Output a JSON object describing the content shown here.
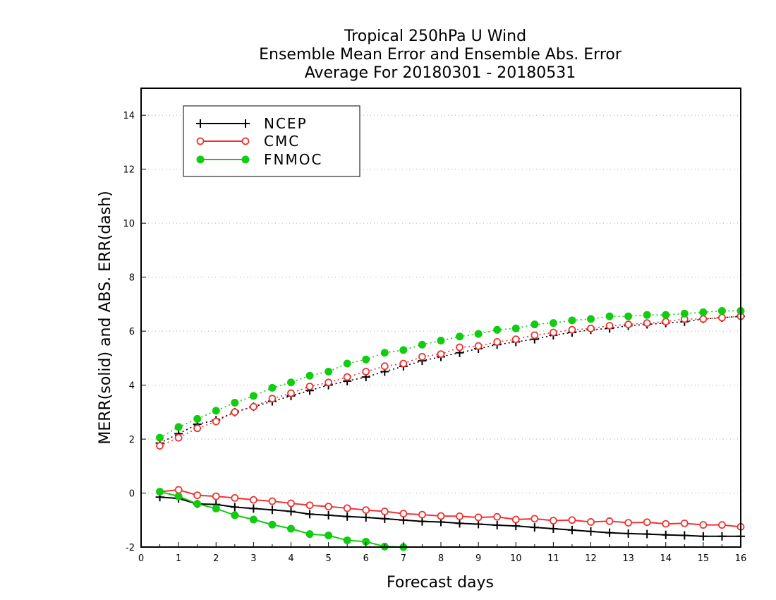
{
  "chart_data": {
    "type": "line",
    "title": [
      "Tropical 250hPa U Wind",
      "Ensemble Mean Error and Ensemble Abs. Error",
      "Average For 20180301 - 20180531"
    ],
    "xlabel": "Forecast days",
    "ylabel": "MERR(solid) and ABS. ERR(dash)",
    "xlim": [
      0,
      16
    ],
    "ylim": [
      -2,
      15
    ],
    "xticks": [
      "0",
      "1",
      "2",
      "3",
      "4",
      "5",
      "6",
      "7",
      "8",
      "9",
      "10",
      "11",
      "12",
      "13",
      "14",
      "15",
      "16"
    ],
    "yticks": [
      "-2",
      "0",
      "2",
      "4",
      "6",
      "8",
      "10",
      "12",
      "14"
    ],
    "grid": "horizontal dotted",
    "legend_position": "top-left",
    "x": [
      0.5,
      1,
      1.5,
      2,
      2.5,
      3,
      3.5,
      4,
      4.5,
      5,
      5.5,
      6,
      6.5,
      7,
      7.5,
      8,
      8.5,
      9,
      9.5,
      10,
      10.5,
      11,
      11.5,
      12,
      12.5,
      13,
      13.5,
      14,
      14.5,
      15,
      15.5,
      16
    ],
    "series": [
      {
        "name": "NCEP",
        "color": "#000000",
        "marker": "plus",
        "merr": [
          -0.15,
          -0.2,
          -0.4,
          -0.42,
          -0.52,
          -0.57,
          -0.62,
          -0.68,
          -0.78,
          -0.82,
          -0.87,
          -0.9,
          -0.95,
          -1.0,
          -1.05,
          -1.07,
          -1.12,
          -1.15,
          -1.19,
          -1.22,
          -1.27,
          -1.32,
          -1.37,
          -1.42,
          -1.47,
          -1.5,
          -1.52,
          -1.55,
          -1.57,
          -1.6,
          -1.6,
          -1.6
        ],
        "abs_err": [
          1.85,
          2.2,
          2.55,
          2.7,
          3.0,
          3.2,
          3.4,
          3.6,
          3.8,
          4.0,
          4.15,
          4.3,
          4.5,
          4.7,
          4.9,
          5.05,
          5.2,
          5.35,
          5.5,
          5.6,
          5.7,
          5.85,
          5.95,
          6.05,
          6.1,
          6.2,
          6.25,
          6.3,
          6.35,
          6.45,
          6.5,
          6.55
        ]
      },
      {
        "name": "CMC",
        "color": "#ee3333",
        "marker": "open-circle",
        "merr": [
          0.05,
          0.12,
          -0.08,
          -0.12,
          -0.18,
          -0.25,
          -0.3,
          -0.38,
          -0.45,
          -0.5,
          -0.56,
          -0.63,
          -0.68,
          -0.76,
          -0.8,
          -0.85,
          -0.86,
          -0.9,
          -0.88,
          -0.98,
          -0.95,
          -1.02,
          -1.0,
          -1.07,
          -1.04,
          -1.1,
          -1.08,
          -1.14,
          -1.12,
          -1.18,
          -1.18,
          -1.25
        ],
        "abs_err": [
          1.75,
          2.05,
          2.4,
          2.65,
          3.0,
          3.2,
          3.5,
          3.7,
          3.95,
          4.1,
          4.3,
          4.5,
          4.7,
          4.8,
          5.05,
          5.15,
          5.4,
          5.45,
          5.6,
          5.7,
          5.85,
          5.95,
          6.05,
          6.1,
          6.2,
          6.25,
          6.3,
          6.35,
          6.45,
          6.45,
          6.5,
          6.55
        ]
      },
      {
        "name": "FNMOC",
        "color": "#11cc11",
        "marker": "filled-circle",
        "merr": [
          0.05,
          -0.12,
          -0.4,
          -0.57,
          -0.82,
          -0.98,
          -1.17,
          -1.32,
          -1.52,
          -1.57,
          -1.75,
          -1.8,
          -1.98,
          -2.0
        ],
        "abs_err": [
          2.05,
          2.45,
          2.75,
          3.05,
          3.35,
          3.6,
          3.9,
          4.1,
          4.35,
          4.5,
          4.8,
          4.95,
          5.2,
          5.3,
          5.5,
          5.65,
          5.8,
          5.9,
          6.05,
          6.1,
          6.25,
          6.3,
          6.4,
          6.45,
          6.55,
          6.55,
          6.6,
          6.6,
          6.65,
          6.7,
          6.75,
          6.75
        ]
      }
    ]
  }
}
